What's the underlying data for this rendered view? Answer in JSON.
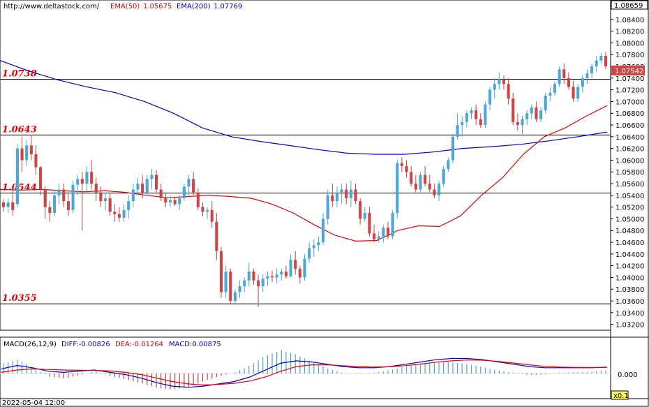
{
  "header": {
    "url": "http://www.deltastock.com/",
    "ema50_label": "EMA(50)",
    "ema50_value": "1.05675",
    "ema200_label": "EMA(200)",
    "ema200_value": "1.07769"
  },
  "price_panel": {
    "top_value": "1.08659",
    "current_price": "1.07542",
    "ticks": [
      "1.08400",
      "1.08200",
      "1.08000",
      "1.07800",
      "1.07600",
      "1.07400",
      "1.07200",
      "1.07000",
      "1.06800",
      "1.06600",
      "1.06400",
      "1.06200",
      "1.06000",
      "1.05800",
      "1.05600",
      "1.05400",
      "1.05200",
      "1.05000",
      "1.04800",
      "1.04600",
      "1.04400",
      "1.04200",
      "1.04000",
      "1.03800",
      "1.03600",
      "1.03400",
      "1.03200"
    ],
    "levels": [
      {
        "label": "1.0738",
        "value": 1.0738
      },
      {
        "label": "1.0643",
        "value": 1.0643
      },
      {
        "label": "1.0544",
        "value": 1.0544
      },
      {
        "label": "1.0355",
        "value": 1.0355
      }
    ]
  },
  "macd_panel": {
    "title": "MACD(26,12,9)",
    "diff_text": "DIFF:-0.00826",
    "dea_text": "DEA:-0.01264",
    "macd_text": "MACD:0.00875",
    "zero_tick": "0.000"
  },
  "footer": {
    "date": "2022-05-04 12:00",
    "zoom": "x0.1"
  },
  "colors": {
    "bull": "#4da6d9",
    "bear": "#cc4444",
    "ema50": "#e00000",
    "ema200": "#0000cc",
    "grid_line": "#000000",
    "diff": "#0000cc",
    "dea": "#e00000"
  },
  "chart_data": {
    "type": "candlestick",
    "y_range": [
      1.0316,
      1.0866
    ],
    "candles": [
      [
        1.0528,
        1.0534,
        1.0512,
        1.052
      ],
      [
        1.052,
        1.0535,
        1.051,
        1.0528
      ],
      [
        1.0528,
        1.0552,
        1.0505,
        1.0515
      ],
      [
        1.0525,
        1.0628,
        1.052,
        1.062
      ],
      [
        1.062,
        1.064,
        1.058,
        1.06
      ],
      [
        1.06,
        1.0635,
        1.059,
        1.0625
      ],
      [
        1.0625,
        1.0643,
        1.06,
        1.061
      ],
      [
        1.061,
        1.0625,
        1.0575,
        1.0588
      ],
      [
        1.0588,
        1.059,
        1.054,
        1.055
      ],
      [
        1.055,
        1.0556,
        1.05,
        1.052
      ],
      [
        1.052,
        1.053,
        1.0495,
        1.051
      ],
      [
        1.051,
        1.055,
        1.0505,
        1.054
      ],
      [
        1.054,
        1.056,
        1.0525,
        1.055
      ],
      [
        1.055,
        1.056,
        1.052,
        1.053
      ],
      [
        1.053,
        1.0545,
        1.0505,
        1.0515
      ],
      [
        1.0515,
        1.0565,
        1.051,
        1.0558
      ],
      [
        1.0558,
        1.0575,
        1.054,
        1.0568
      ],
      [
        1.0568,
        1.058,
        1.048,
        1.056
      ],
      [
        1.056,
        1.059,
        1.0545,
        1.058
      ],
      [
        1.058,
        1.06,
        1.055,
        1.056
      ],
      [
        1.056,
        1.057,
        1.053,
        1.0545
      ],
      [
        1.0545,
        1.0555,
        1.052,
        1.053
      ],
      [
        1.053,
        1.0545,
        1.0515,
        1.0535
      ],
      [
        1.0535,
        1.0545,
        1.0505,
        1.0512
      ],
      [
        1.0512,
        1.0525,
        1.0495,
        1.0508
      ],
      [
        1.0508,
        1.052,
        1.0495,
        1.0502
      ],
      [
        1.0502,
        1.0525,
        1.0495,
        1.0515
      ],
      [
        1.0515,
        1.054,
        1.05,
        1.053
      ],
      [
        1.053,
        1.056,
        1.052,
        1.055
      ],
      [
        1.055,
        1.057,
        1.054,
        1.056
      ],
      [
        1.056,
        1.0575,
        1.0535,
        1.0545
      ],
      [
        1.0545,
        1.0575,
        1.054,
        1.0568
      ],
      [
        1.0568,
        1.0585,
        1.055,
        1.0575
      ],
      [
        1.0575,
        1.0583,
        1.0545,
        1.055
      ],
      [
        1.055,
        1.056,
        1.053,
        1.0535
      ],
      [
        1.0535,
        1.0545,
        1.052,
        1.0528
      ],
      [
        1.0528,
        1.054,
        1.052,
        1.0532
      ],
      [
        1.0532,
        1.0538,
        1.0522,
        1.0525
      ],
      [
        1.0525,
        1.054,
        1.0515,
        1.0535
      ],
      [
        1.0535,
        1.056,
        1.053,
        1.0555
      ],
      [
        1.0555,
        1.0575,
        1.054,
        1.0568
      ],
      [
        1.0568,
        1.058,
        1.054,
        1.0545
      ],
      [
        1.0545,
        1.0552,
        1.0515,
        1.052
      ],
      [
        1.052,
        1.0528,
        1.0505,
        1.0512
      ],
      [
        1.0512,
        1.052,
        1.05,
        1.0515
      ],
      [
        1.0515,
        1.053,
        1.0485,
        1.0495
      ],
      [
        1.0495,
        1.051,
        1.043,
        1.0445
      ],
      [
        1.0445,
        1.0452,
        1.0365,
        1.0375
      ],
      [
        1.0375,
        1.042,
        1.0365,
        1.041
      ],
      [
        1.041,
        1.0415,
        1.0355,
        1.036
      ],
      [
        1.036,
        1.038,
        1.0355,
        1.0375
      ],
      [
        1.0375,
        1.0395,
        1.0365,
        1.0385
      ],
      [
        1.0385,
        1.04,
        1.0375,
        1.0395
      ],
      [
        1.0395,
        1.0425,
        1.0385,
        1.041
      ],
      [
        1.041,
        1.0415,
        1.0388,
        1.0395
      ],
      [
        1.0395,
        1.0405,
        1.035,
        1.0385
      ],
      [
        1.0385,
        1.0405,
        1.0375,
        1.0398
      ],
      [
        1.0398,
        1.041,
        1.0385,
        1.0402
      ],
      [
        1.0402,
        1.0412,
        1.0392,
        1.04
      ],
      [
        1.04,
        1.0415,
        1.039,
        1.0405
      ],
      [
        1.0405,
        1.0415,
        1.0395,
        1.041
      ],
      [
        1.041,
        1.042,
        1.0398,
        1.0402
      ],
      [
        1.0402,
        1.044,
        1.04,
        1.043
      ],
      [
        1.043,
        1.0445,
        1.0405,
        1.0415
      ],
      [
        1.0415,
        1.042,
        1.039,
        1.04
      ],
      [
        1.04,
        1.044,
        1.0395,
        1.0432
      ],
      [
        1.0432,
        1.046,
        1.0425,
        1.045
      ],
      [
        1.045,
        1.0465,
        1.0435,
        1.0455
      ],
      [
        1.0455,
        1.047,
        1.0445,
        1.046
      ],
      [
        1.046,
        1.051,
        1.0455,
        1.05
      ],
      [
        1.05,
        1.055,
        1.049,
        1.054
      ],
      [
        1.054,
        1.056,
        1.052,
        1.053
      ],
      [
        1.053,
        1.0555,
        1.052,
        1.0545
      ],
      [
        1.0545,
        1.056,
        1.0525,
        1.055
      ],
      [
        1.055,
        1.056,
        1.0525,
        1.0535
      ],
      [
        1.0535,
        1.0565,
        1.052,
        1.055
      ],
      [
        1.055,
        1.056,
        1.0525,
        1.053
      ],
      [
        1.053,
        1.0535,
        1.049,
        1.05
      ],
      [
        1.05,
        1.052,
        1.0495,
        1.051
      ],
      [
        1.051,
        1.052,
        1.047,
        1.0475
      ],
      [
        1.0475,
        1.049,
        1.046,
        1.0465
      ],
      [
        1.0465,
        1.0478,
        1.046,
        1.047
      ],
      [
        1.047,
        1.049,
        1.046,
        1.0485
      ],
      [
        1.0485,
        1.0495,
        1.0465,
        1.047
      ],
      [
        1.047,
        1.0515,
        1.0465,
        1.051
      ],
      [
        1.051,
        1.06,
        1.05,
        1.0595
      ],
      [
        1.0595,
        1.0605,
        1.058,
        1.059
      ],
      [
        1.059,
        1.06,
        1.057,
        1.058
      ],
      [
        1.058,
        1.059,
        1.0555,
        1.056
      ],
      [
        1.056,
        1.0575,
        1.0545,
        1.055
      ],
      [
        1.055,
        1.058,
        1.0545,
        1.0575
      ],
      [
        1.0575,
        1.059,
        1.0555,
        1.056
      ],
      [
        1.056,
        1.0575,
        1.0545,
        1.055
      ],
      [
        1.055,
        1.056,
        1.0535,
        1.054
      ],
      [
        1.054,
        1.0565,
        1.053,
        1.056
      ],
      [
        1.056,
        1.059,
        1.0555,
        1.0585
      ],
      [
        1.0585,
        1.0605,
        1.058,
        1.06
      ],
      [
        1.06,
        1.0645,
        1.0595,
        1.064
      ],
      [
        1.064,
        1.068,
        1.0635,
        1.066
      ],
      [
        1.066,
        1.0675,
        1.064,
        1.0665
      ],
      [
        1.0665,
        1.0685,
        1.0655,
        1.068
      ],
      [
        1.068,
        1.069,
        1.067,
        1.0685
      ],
      [
        1.0685,
        1.0695,
        1.066,
        1.067
      ],
      [
        1.067,
        1.068,
        1.0655,
        1.066
      ],
      [
        1.066,
        1.07,
        1.0655,
        1.0695
      ],
      [
        1.0695,
        1.0725,
        1.0685,
        1.072
      ],
      [
        1.072,
        1.074,
        1.0705,
        1.073
      ],
      [
        1.073,
        1.075,
        1.072,
        1.0738
      ],
      [
        1.0738,
        1.0745,
        1.072,
        1.073
      ],
      [
        1.073,
        1.074,
        1.0695,
        1.0705
      ],
      [
        1.0705,
        1.0715,
        1.066,
        1.0665
      ],
      [
        1.0665,
        1.068,
        1.065,
        1.066
      ],
      [
        1.066,
        1.0675,
        1.0645,
        1.067
      ],
      [
        1.067,
        1.0685,
        1.066,
        1.068
      ],
      [
        1.068,
        1.0695,
        1.067,
        1.069
      ],
      [
        1.069,
        1.07,
        1.0665,
        1.067
      ],
      [
        1.067,
        1.069,
        1.0665,
        1.0685
      ],
      [
        1.0685,
        1.0715,
        1.068,
        1.071
      ],
      [
        1.071,
        1.0725,
        1.07,
        1.0715
      ],
      [
        1.0715,
        1.0735,
        1.071,
        1.073
      ],
      [
        1.073,
        1.076,
        1.0725,
        1.0755
      ],
      [
        1.0755,
        1.0765,
        1.073,
        1.074
      ],
      [
        1.074,
        1.075,
        1.072,
        1.0725
      ],
      [
        1.0725,
        1.0735,
        1.07,
        1.0705
      ],
      [
        1.0705,
        1.073,
        1.07,
        1.0725
      ],
      [
        1.0725,
        1.0745,
        1.0715,
        1.074
      ],
      [
        1.074,
        1.0755,
        1.073,
        1.0748
      ],
      [
        1.0748,
        1.0765,
        1.074,
        1.076
      ],
      [
        1.076,
        1.0778,
        1.075,
        1.077
      ],
      [
        1.077,
        1.0783,
        1.0765,
        1.0778
      ],
      [
        1.0778,
        1.0785,
        1.0755,
        1.076
      ]
    ],
    "ema50": [
      1.055,
      1.0549,
      1.055,
      1.0548,
      1.0546,
      1.0548,
      1.0545,
      1.054,
      1.0536,
      1.0538,
      1.054,
      1.0538,
      1.0535,
      1.0525,
      1.051,
      1.049,
      1.0472,
      1.0462,
      1.0463,
      1.048,
      1.0488,
      1.0487,
      1.0505,
      1.054,
      1.057,
      1.061,
      1.064,
      1.0655,
      1.0675,
      1.0693
    ],
    "ema200": [
      1.077,
      1.0752,
      1.0737,
      1.0725,
      1.0715,
      1.07,
      1.068,
      1.0655,
      1.064,
      1.0632,
      1.0625,
      1.0618,
      1.0612,
      1.061,
      1.061,
      1.0614,
      1.062,
      1.0623,
      1.0627,
      1.0633,
      1.064,
      1.0648
    ],
    "macd": {
      "zero_label": "0.000",
      "diff": [
        0.4,
        0.7,
        0.5,
        0.2,
        0.1,
        0.2,
        0.3,
        0.1,
        -0.1,
        -0.4,
        -0.8,
        -1.1,
        -1.2,
        -1.1,
        -0.9,
        -0.7,
        -0.3,
        0.3,
        0.9,
        1.1,
        1.0,
        0.8,
        0.6,
        0.5,
        0.5,
        0.6,
        0.8,
        1.0,
        1.2,
        1.3,
        1.3,
        1.2,
        1.0,
        0.8,
        0.6,
        0.5,
        0.5,
        0.5,
        0.5,
        0.55
      ],
      "dea": [
        0.1,
        0.3,
        0.4,
        0.35,
        0.3,
        0.28,
        0.27,
        0.22,
        0.1,
        -0.1,
        -0.4,
        -0.7,
        -0.9,
        -1.0,
        -0.95,
        -0.85,
        -0.65,
        -0.3,
        0.2,
        0.6,
        0.75,
        0.75,
        0.68,
        0.6,
        0.55,
        0.58,
        0.68,
        0.82,
        0.98,
        1.1,
        1.17,
        1.15,
        1.05,
        0.9,
        0.75,
        0.62,
        0.55,
        0.53,
        0.52,
        0.53
      ]
    }
  }
}
